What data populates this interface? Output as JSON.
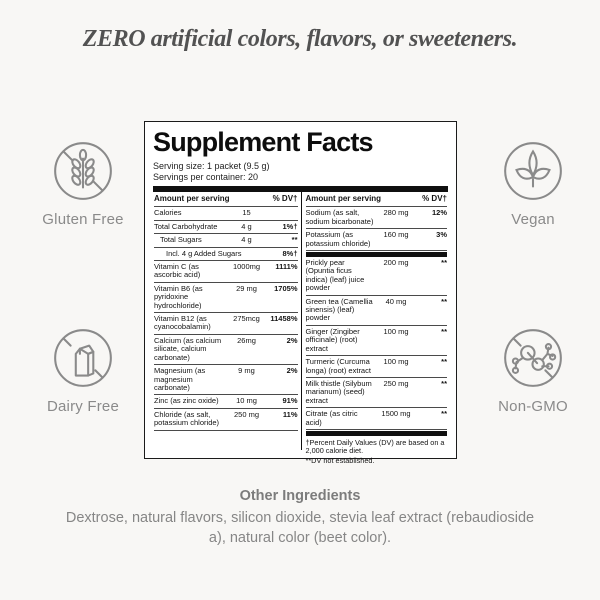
{
  "headline": "ZERO artificial colors, flavors, or sweeteners.",
  "badges": [
    {
      "id": "gluten-free",
      "label": "Gluten Free",
      "icon": "wheat-slash-icon"
    },
    {
      "id": "vegan",
      "label": "Vegan",
      "icon": "leaves-icon"
    },
    {
      "id": "dairy-free",
      "label": "Dairy Free",
      "icon": "milk-carton-slash-icon"
    },
    {
      "id": "non-gmo",
      "label": "Non-GMO",
      "icon": "molecule-slash-icon"
    }
  ],
  "panel": {
    "title": "Supplement Facts",
    "serving_size": "Serving size: 1 packet (9.5 g)",
    "servings_per_container": "Servings per container: 20",
    "column_header": {
      "amount": "Amount per serving",
      "dv": "% DV†"
    },
    "left_rows": [
      {
        "name": "Calories",
        "amount": "15",
        "dv": ""
      },
      {
        "name": "Total Carbohydrate",
        "amount": "4 g",
        "dv": "1%†"
      },
      {
        "name": "Total Sugars",
        "amount": "4 g",
        "dv": "**",
        "indent": 1
      },
      {
        "name": "Incl. 4 g Added Sugars",
        "amount": "",
        "dv": "8%†",
        "indent": 2
      },
      {
        "name": "Vitamin C (as ascorbic acid)",
        "amount": "1000mg",
        "dv": "1111%"
      },
      {
        "name": "Vitamin B6 (as pyridoxine hydrochloride)",
        "amount": "29 mg",
        "dv": "1705%"
      },
      {
        "name": "Vitamin B12 (as cyanocobalamin)",
        "amount": "275mcg",
        "dv": "11458%"
      },
      {
        "name": "Calcium (as calcium silicate, calcium carbonate)",
        "amount": "26mg",
        "dv": "2%"
      },
      {
        "name": "Magnesium (as magnesium carbonate)",
        "amount": "9 mg",
        "dv": "2%"
      },
      {
        "name": "Zinc (as zinc oxide)",
        "amount": "10 mg",
        "dv": "91%"
      },
      {
        "name": "Chloride (as salt, potassium chloride)",
        "amount": "250 mg",
        "dv": "11%"
      }
    ],
    "right_rows": [
      {
        "name": "Sodium (as salt, sodium bicarbonate)",
        "amount": "280 mg",
        "dv": "12%"
      },
      {
        "name": "Potassium (as potassium chloride)",
        "amount": "160 mg",
        "dv": "3%"
      },
      {
        "bar": true
      },
      {
        "name": "Prickly pear (Opuntia ficus indica) (leaf) juice powder",
        "amount": "200 mg",
        "dv": "**"
      },
      {
        "name": "Green tea (Camellia sinensis) (leaf) powder",
        "amount": "40 mg",
        "dv": "**"
      },
      {
        "name": "Ginger (Zingiber officinale) (root) extract",
        "amount": "100 mg",
        "dv": "**"
      },
      {
        "name": "Turmeric (Curcuma longa) (root) extract",
        "amount": "100 mg",
        "dv": "**"
      },
      {
        "name": "Milk thistle (Silybum marianum) (seed) extract",
        "amount": "250 mg",
        "dv": "**"
      },
      {
        "name": "Citrate (as citric acid)",
        "amount": "1500 mg",
        "dv": "**"
      },
      {
        "bar": true
      }
    ],
    "footnotes": [
      "†Percent Daily Values (DV) are based on a 2,000 calorie diet.",
      "**DV not established."
    ]
  },
  "other_ingredients": {
    "title": "Other Ingredients",
    "text": "Dextrose, natural flavors, silicon dioxide, stevia leaf extract (rebaudioside a), natural color (beet color)."
  },
  "colors": {
    "page_background": "#f8f7f5",
    "panel_background": "#ffffff",
    "panel_ink": "#101010",
    "badge_gray": "#8a8a8a",
    "headline_gray": "#525252",
    "footer_gray": "#868686"
  }
}
